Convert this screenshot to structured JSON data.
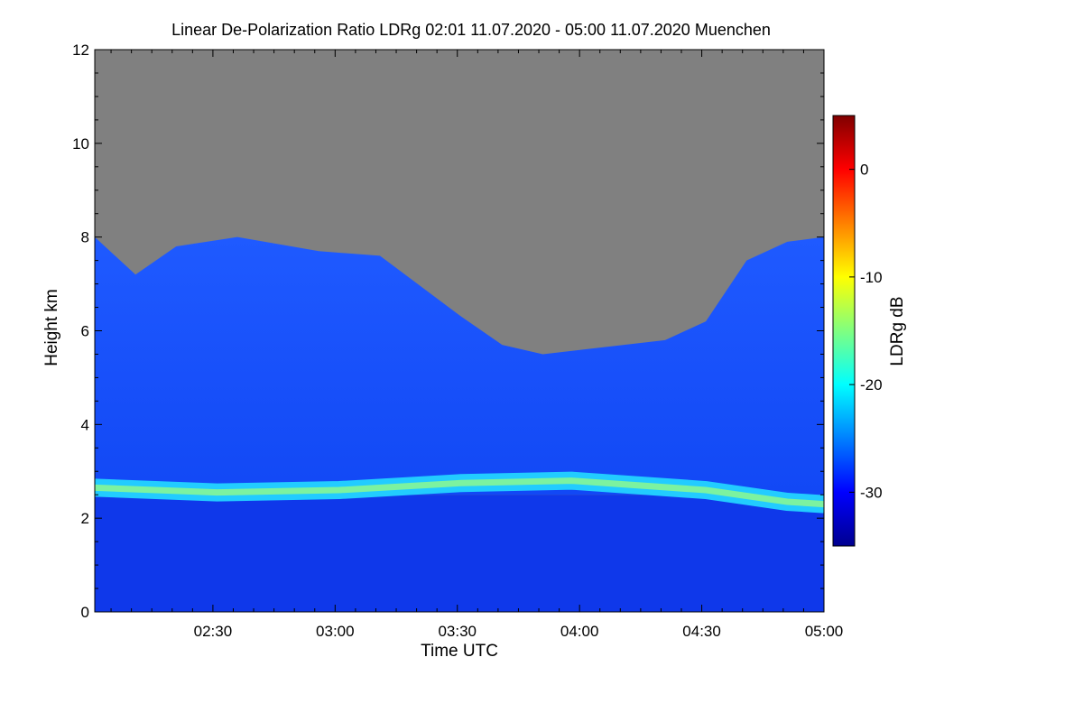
{
  "chart_data": {
    "type": "heatmap",
    "title": "Linear De-Polarization Ratio LDRg   02:01 11.07.2020 - 05:00 11.07.2020 Muenchen",
    "xlabel": "Time UTC",
    "ylabel": "Height km",
    "colorbar_label": "LDRg dB",
    "xlim": [
      "02:01",
      "05:00"
    ],
    "ylim": [
      0,
      12
    ],
    "x_ticks": [
      "02:30",
      "03:00",
      "03:30",
      "04:00",
      "04:30",
      "05:00"
    ],
    "y_ticks": [
      0,
      2,
      4,
      6,
      8,
      10,
      12
    ],
    "colorbar_range": [
      -35,
      5
    ],
    "colorbar_ticks": [
      0,
      -10,
      -20,
      -30
    ],
    "colormap": [
      "#00008f",
      "#0000ff",
      "#0080ff",
      "#00ffff",
      "#80ff80",
      "#ffff00",
      "#ff8000",
      "#ff0000",
      "#800000"
    ],
    "no_data_color": "#808080",
    "layers": [
      {
        "name": "depolarization layer",
        "ldr_db": -18,
        "height_km": [
          [
            0,
            2.65
          ],
          [
            30,
            2.55
          ],
          [
            60,
            2.6
          ],
          [
            90,
            2.75
          ],
          [
            117,
            2.8
          ],
          [
            150,
            2.6
          ],
          [
            170,
            2.35
          ],
          [
            179,
            2.3
          ]
        ]
      },
      {
        "name": "below layer",
        "ldr_db": -30,
        "height_km": [
          0,
          2.5
        ]
      },
      {
        "name": "above layer",
        "ldr_db": -28,
        "height_km": [
          2.9,
          6.5
        ]
      }
    ],
    "data_top_km": [
      [
        0,
        8.0
      ],
      [
        10,
        7.2
      ],
      [
        20,
        7.8
      ],
      [
        35,
        8.0
      ],
      [
        55,
        7.7
      ],
      [
        70,
        7.6
      ],
      [
        90,
        6.3
      ],
      [
        100,
        5.7
      ],
      [
        110,
        5.5
      ],
      [
        120,
        5.6
      ],
      [
        140,
        5.8
      ],
      [
        150,
        6.2
      ],
      [
        160,
        7.5
      ],
      [
        170,
        7.9
      ],
      [
        179,
        8.0
      ]
    ]
  }
}
